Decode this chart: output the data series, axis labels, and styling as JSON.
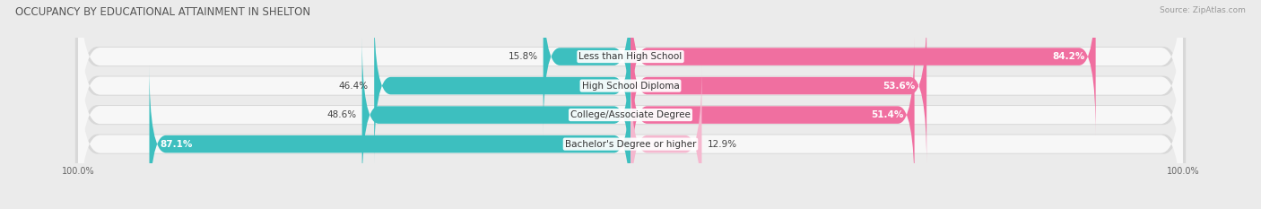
{
  "title": "OCCUPANCY BY EDUCATIONAL ATTAINMENT IN SHELTON",
  "source": "Source: ZipAtlas.com",
  "categories": [
    "Less than High School",
    "High School Diploma",
    "College/Associate Degree",
    "Bachelor's Degree or higher"
  ],
  "owner_pct": [
    15.8,
    46.4,
    48.6,
    87.1
  ],
  "renter_pct": [
    84.2,
    53.6,
    51.4,
    12.9
  ],
  "owner_color": "#3DBFBF",
  "renter_color": "#F06FA0",
  "renter_color_light": "#F5B8CF",
  "bg_color": "#ebebeb",
  "bar_bg_color": "#f7f7f7",
  "bar_shadow_color": "#d8d8d8",
  "title_fontsize": 8.5,
  "label_fontsize": 7.5,
  "source_fontsize": 6.5,
  "axis_label_fontsize": 7.0,
  "bar_height": 0.62,
  "total_width": 100.0
}
